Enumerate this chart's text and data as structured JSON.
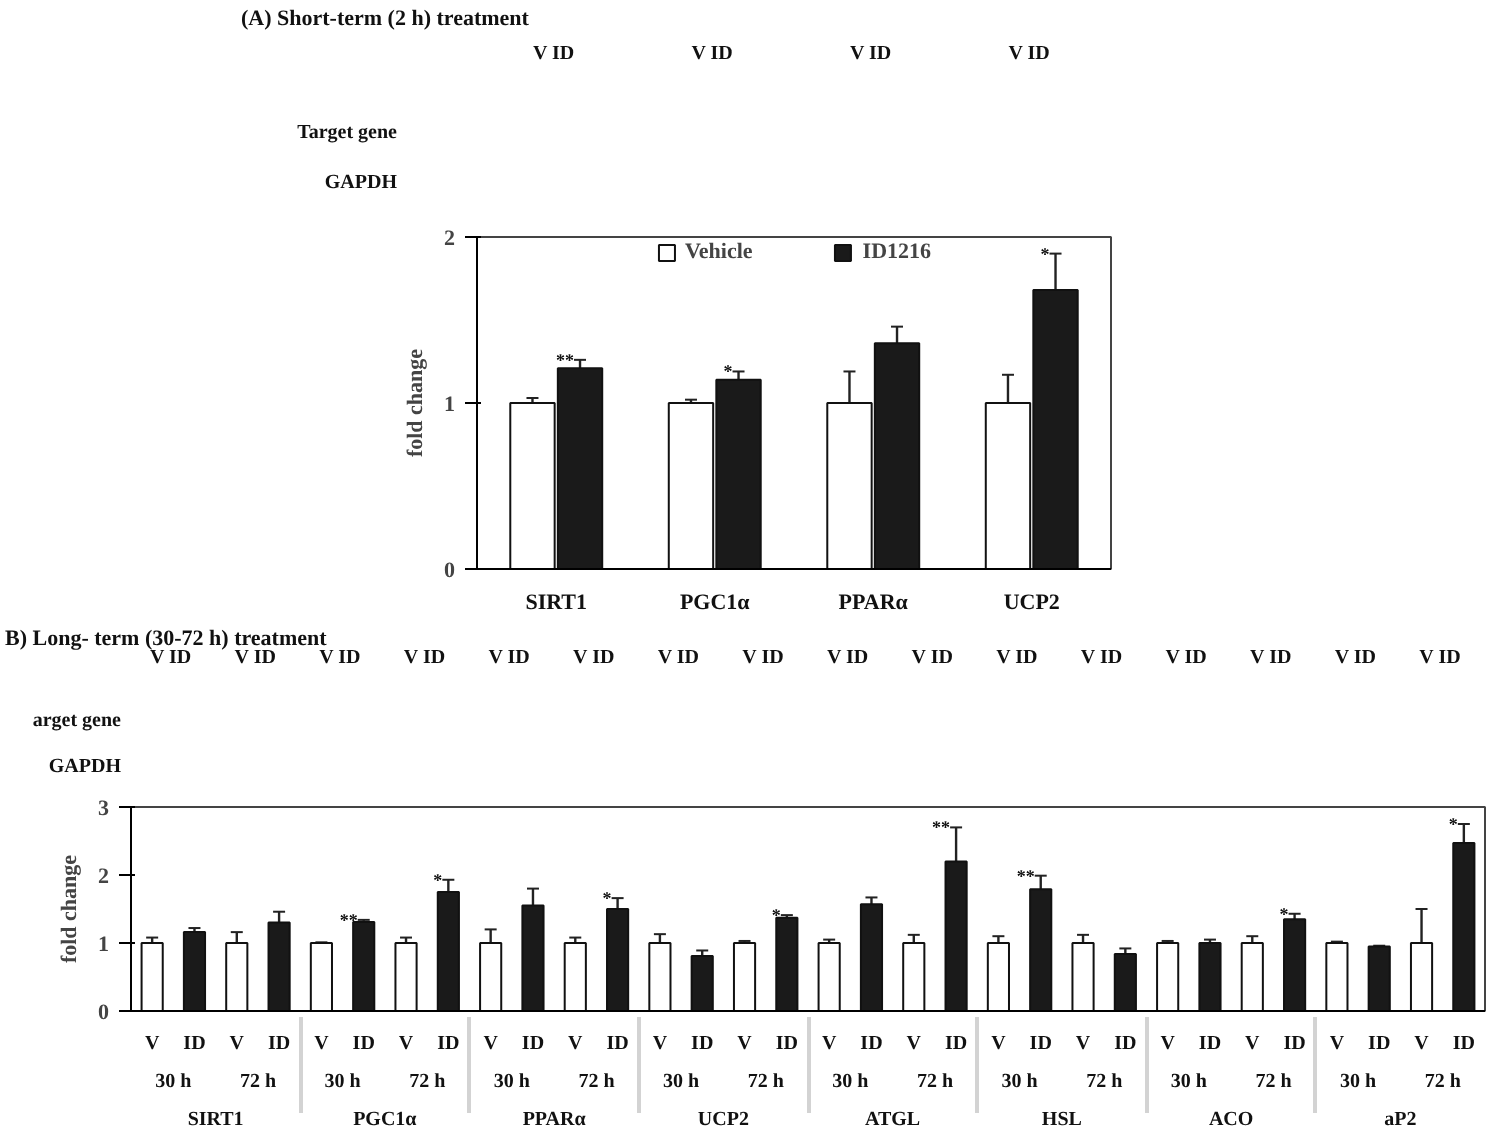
{
  "chart_data": [
    {
      "type": "bar",
      "title": "(A) Short-term (2 h) treatment",
      "ylabel": "fold change",
      "categories": [
        "SIRT1",
        "PGC1α",
        "PPARα",
        "UCP2"
      ],
      "series": [
        {
          "name": "Vehicle",
          "color": "#ffffff",
          "values": [
            1.0,
            1.0,
            1.0,
            1.0
          ],
          "errors": [
            0.03,
            0.02,
            0.19,
            0.17
          ]
        },
        {
          "name": "ID1216",
          "color": "#1a1a1a",
          "values": [
            1.21,
            1.14,
            1.36,
            1.68
          ],
          "errors": [
            0.05,
            0.05,
            0.1,
            0.22
          ],
          "value_labels": [
            "**",
            "*",
            null,
            "*"
          ]
        }
      ],
      "ylim": [
        0,
        2
      ],
      "yticks": [
        0,
        1,
        2
      ],
      "legend": "top",
      "annotations": [
        "Target gene",
        "GAPDH",
        "V  ID",
        "V  ID",
        "V  ID",
        "V  ID"
      ]
    },
    {
      "type": "bar",
      "title": "B) Long- term (30-72 h) treatment",
      "ylabel": "fold change",
      "categories": [
        "30 h",
        "72 h",
        "30 h",
        "72 h",
        "30 h",
        "72 h",
        "30 h",
        "72 h",
        "30 h",
        "72 h",
        "30 h",
        "72 h",
        "30 h",
        "72 h",
        "30 h",
        "72 h"
      ],
      "series": [
        {
          "name": "V",
          "color": "#ffffff",
          "values": [
            1.0,
            1.0,
            1.0,
            1.0,
            1.0,
            1.0,
            1.0,
            1.0,
            1.0,
            1.0,
            1.0,
            1.0,
            1.0,
            1.0,
            1.0,
            1.0
          ],
          "errors": [
            0.08,
            0.16,
            0.01,
            0.08,
            0.2,
            0.08,
            0.13,
            0.03,
            0.05,
            0.12,
            0.1,
            0.12,
            0.03,
            0.1,
            0.02,
            0.5
          ]
        },
        {
          "name": "ID",
          "color": "#1a1a1a",
          "values": [
            1.16,
            1.3,
            1.31,
            1.75,
            1.55,
            1.5,
            0.81,
            1.37,
            1.57,
            2.2,
            1.79,
            0.84,
            1.0,
            1.35,
            0.95,
            2.47
          ],
          "errors": [
            0.06,
            0.16,
            0.03,
            0.18,
            0.25,
            0.16,
            0.08,
            0.04,
            0.1,
            0.5,
            0.2,
            0.08,
            0.05,
            0.08,
            0.01,
            0.28
          ],
          "value_labels": [
            null,
            null,
            "**",
            "*",
            null,
            "*",
            null,
            "*",
            null,
            "**",
            "**",
            null,
            null,
            "*",
            null,
            "*"
          ]
        }
      ],
      "ylim": [
        0,
        3
      ],
      "yticks": [
        0,
        1,
        2,
        3
      ],
      "annotations": [
        "SIRT1",
        "PGC1α",
        "PPARα",
        "UCP2",
        "ATGL",
        "HSL",
        "ACO",
        "aP2",
        "arget gene",
        "GAPDH",
        "V  ID",
        "V  ID",
        "V  ID",
        "V  ID",
        "V  ID",
        "V  ID",
        "V  ID",
        "V  ID",
        "V  ID",
        "V  ID",
        "V  ID",
        "V  ID",
        "V  ID",
        "V  ID",
        "V  ID",
        "V  ID"
      ]
    }
  ]
}
